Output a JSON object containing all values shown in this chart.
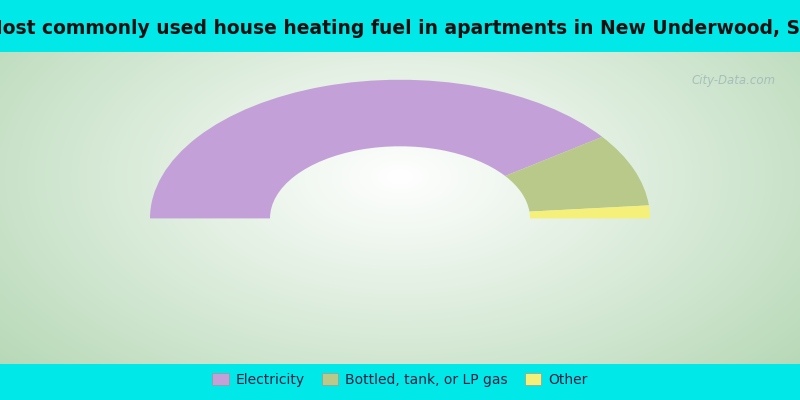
{
  "title": "Most commonly used house heating fuel in apartments in New Underwood, SD",
  "values": [
    80.0,
    17.0,
    3.0
  ],
  "labels": [
    "Electricity",
    "Bottled, tank, or LP gas",
    "Other"
  ],
  "colors": [
    "#c4a0d8",
    "#b8c98a",
    "#f5f07a"
  ],
  "bg_outer_color": "#b8d8b8",
  "bg_inner_color": "#ffffff",
  "border_color": "#00e8e8",
  "title_fontsize": 13.5,
  "legend_fontsize": 10,
  "watermark": "City-Data.com",
  "outer_r": 1.0,
  "inner_r": 0.52
}
